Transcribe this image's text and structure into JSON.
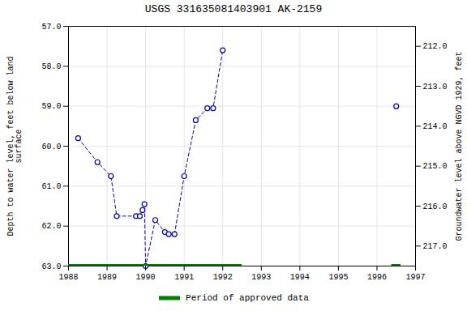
{
  "chart_data": {
    "type": "line",
    "title": "USGS 331635081403901 AK-2159",
    "ylabel": "Depth to water level, feet below land\nsurface",
    "y2label": "Groundwater level above NGVD 1929, feet",
    "xlim": [
      1988,
      1997
    ],
    "xticks": [
      1988,
      1989,
      1990,
      1991,
      1992,
      1993,
      1994,
      1995,
      1996,
      1997
    ],
    "ylim": [
      63.0,
      57.0
    ],
    "yticks": [
      {
        "value": 57.0,
        "label": "57.0"
      },
      {
        "value": 58.0,
        "label": "58.0"
      },
      {
        "value": 59.0,
        "label": "59.0"
      },
      {
        "value": 60.0,
        "label": "60.0"
      },
      {
        "value": 61.0,
        "label": "61.0"
      },
      {
        "value": 62.0,
        "label": "62.0"
      },
      {
        "value": 63.0,
        "label": "63.0"
      }
    ],
    "y2lim": [
      217.5,
      211.5
    ],
    "y2ticks": [
      {
        "value": 217.0,
        "label": "217.0"
      },
      {
        "value": 216.0,
        "label": "216.0"
      },
      {
        "value": 215.0,
        "label": "215.0"
      },
      {
        "value": 214.0,
        "label": "214.0"
      },
      {
        "value": 213.0,
        "label": "213.0"
      },
      {
        "value": 212.0,
        "label": "212.0"
      }
    ],
    "grid": true,
    "legend": "bottom",
    "series": [
      {
        "x": [
          1988.25,
          1988.75,
          1989.1,
          1989.25,
          1989.75,
          1989.85,
          1989.92,
          1989.97,
          1990.0,
          1990.25,
          1990.5,
          1990.6,
          1990.75,
          1991.0,
          1991.3,
          1991.6,
          1991.75,
          1992.0
        ],
        "values": [
          59.8,
          60.4,
          60.75,
          61.75,
          61.75,
          61.75,
          61.6,
          61.45,
          63.0,
          61.85,
          62.15,
          62.2,
          62.2,
          60.75,
          59.35,
          59.05,
          59.05,
          57.6
        ],
        "color": "#0000cc",
        "line_style": "dashed",
        "marker": "open circle"
      },
      {
        "x": [
          1996.5
        ],
        "values": [
          59.0
        ],
        "color": "#0000cc",
        "line_style": "dashed",
        "marker": "open circle"
      },
      {
        "name": "Period of approved data",
        "type": "interval",
        "color": "green",
        "y": 63.0,
        "start": [
          1988.0,
          1996.38
        ],
        "end": [
          1992.5,
          1996.62
        ]
      }
    ]
  }
}
